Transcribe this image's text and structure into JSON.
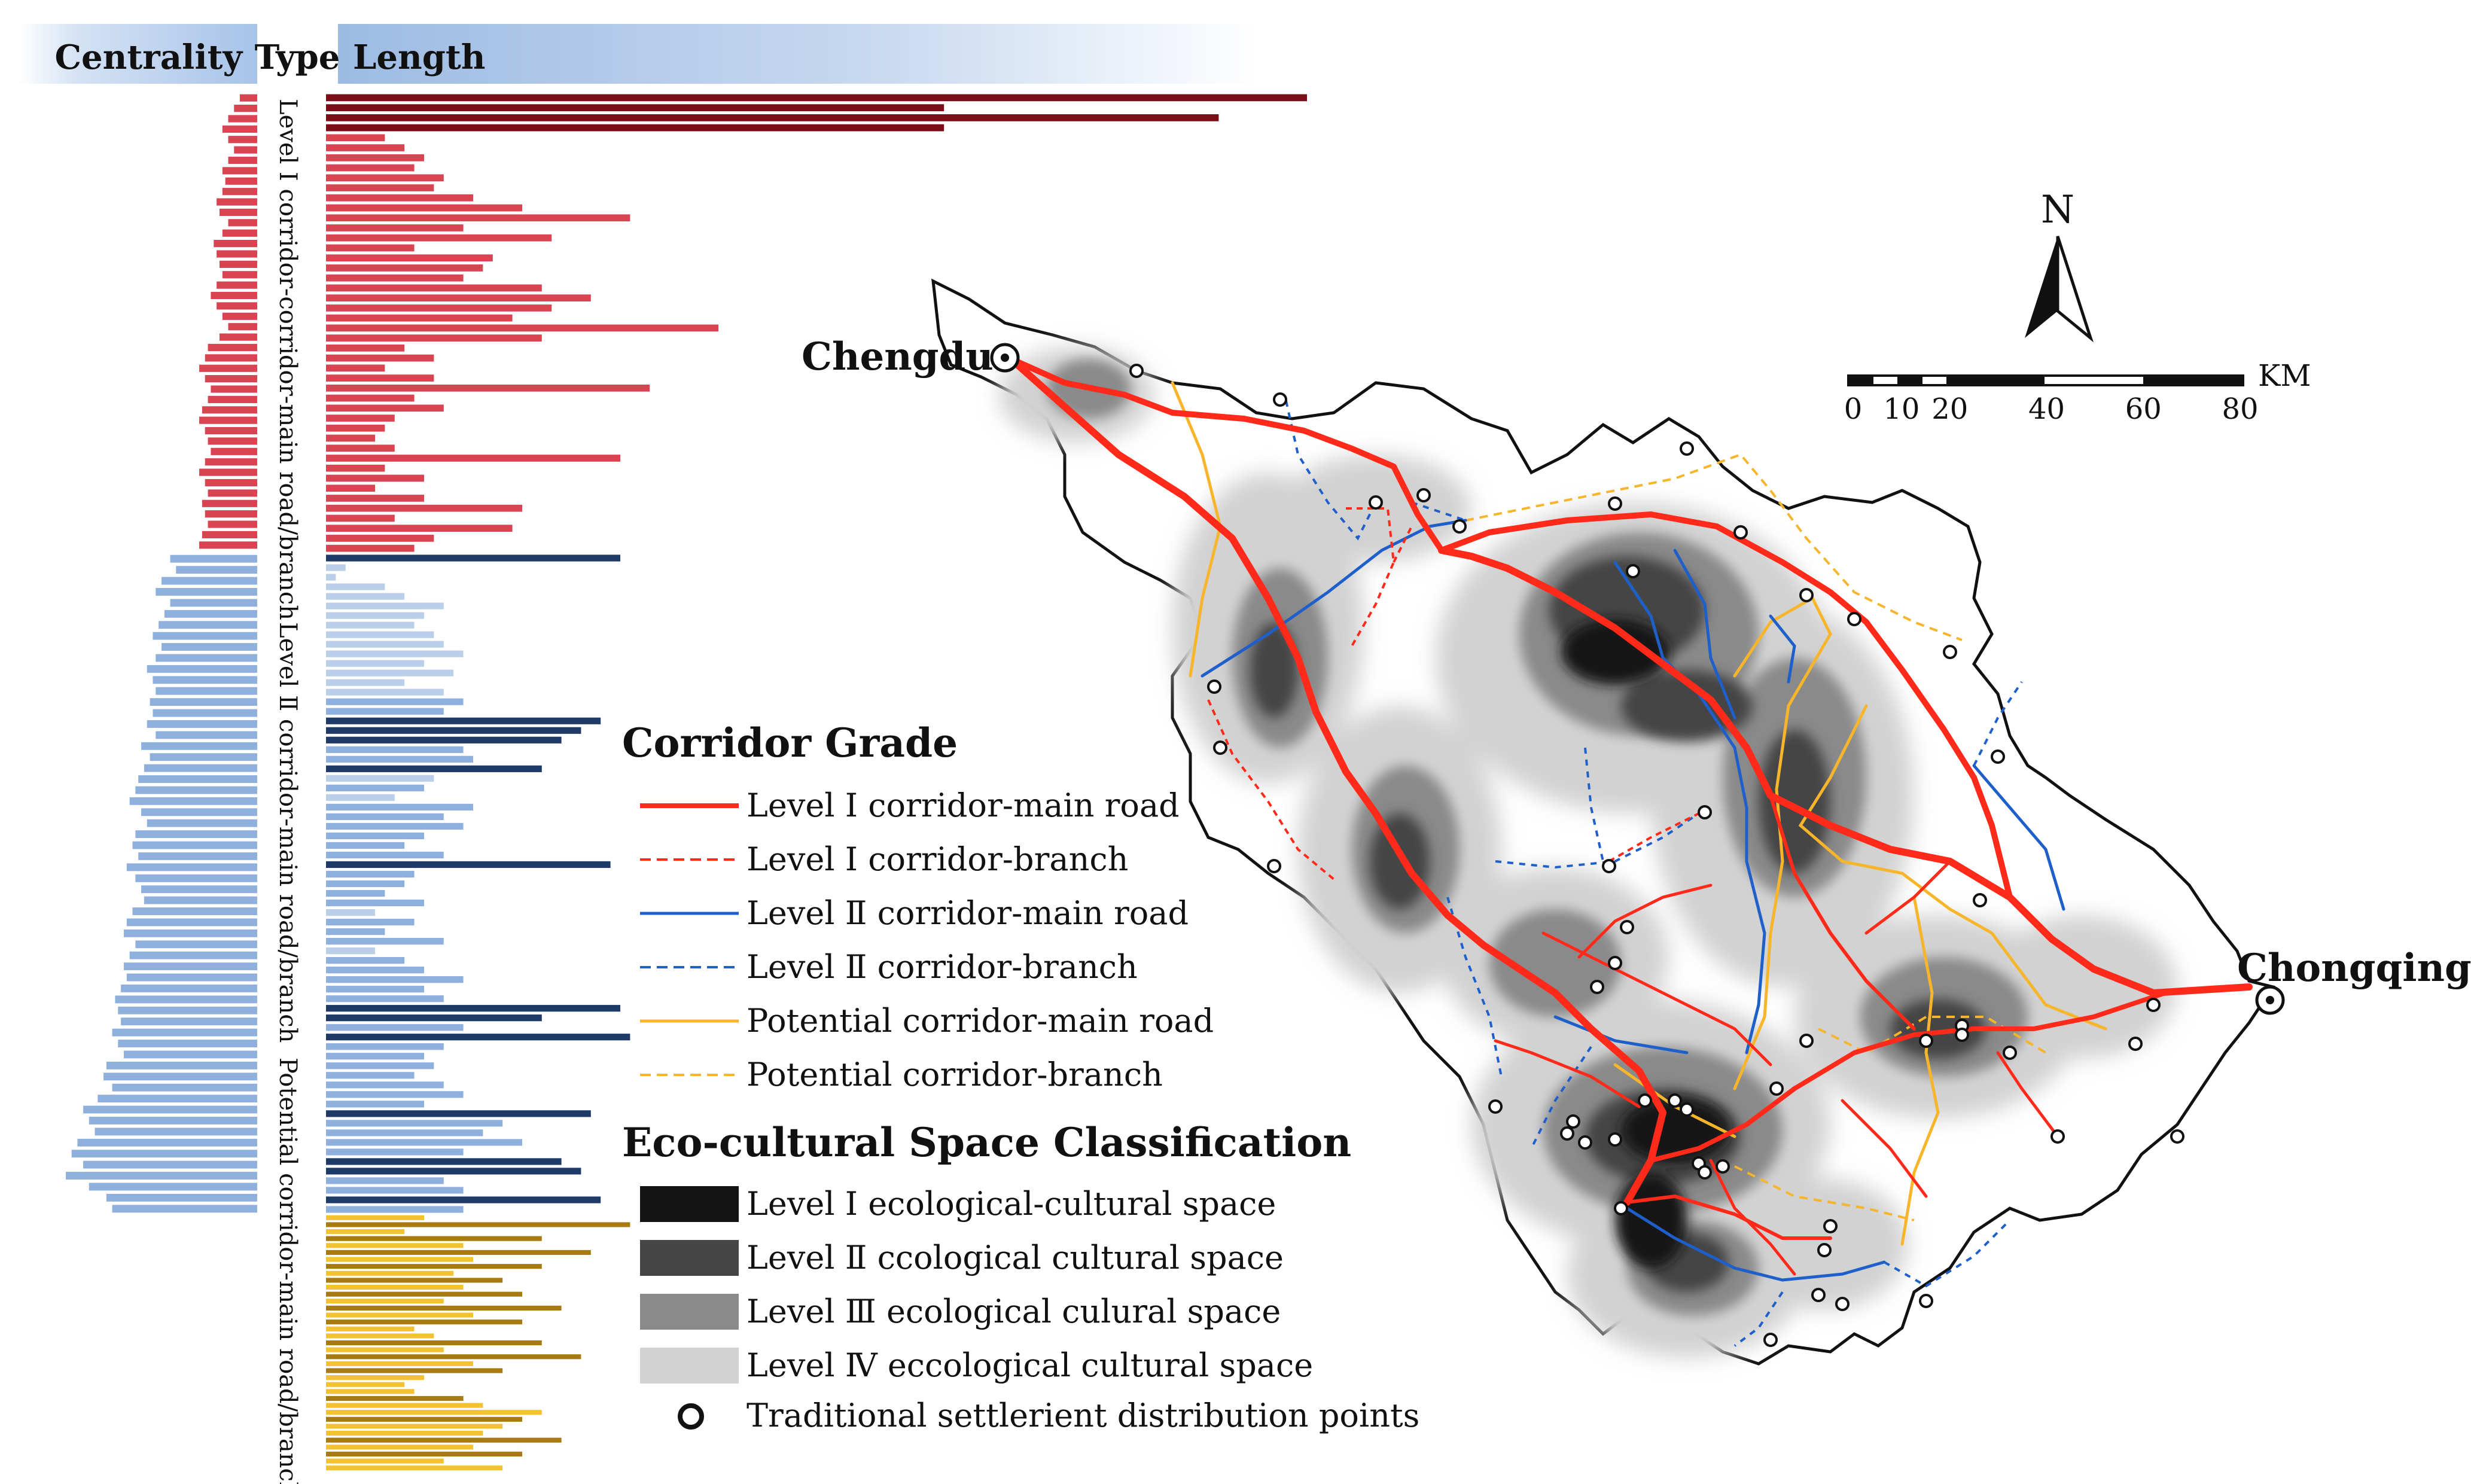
{
  "header": {
    "centrality_label": "Centrality",
    "type_label": "Type",
    "length_label": "Length"
  },
  "type_labels": {
    "level1": "Level Ⅰ corridor-corridor-main road/branch",
    "level2": "Level Ⅱ corridor-main road/branch",
    "potential": "Potential corridor-main road/branch"
  },
  "colors": {
    "level1_main": "#7a0e16",
    "level1_branch": "#d94452",
    "level2_main": "#1f3a66",
    "level2_branch": "#8fb0dc",
    "level2_light": "#bccfe9",
    "potential_main": "#a77b12",
    "potential_branch": "#f2c230",
    "corridor_red": "#ff2a1a",
    "corridor_blue": "#1f5fc9",
    "corridor_yellow": "#f7b52b",
    "space_l1": "#141414",
    "space_l2": "#454545",
    "space_l3": "#8a8a8a",
    "space_l4": "#d2d2d2"
  },
  "centrality_bars": {
    "level1": [
      0.06,
      0.08,
      0.1,
      0.12,
      0.1,
      0.08,
      0.1,
      0.12,
      0.11,
      0.12,
      0.14,
      0.13,
      0.1,
      0.12,
      0.15,
      0.14,
      0.13,
      0.12,
      0.14,
      0.16,
      0.14,
      0.12,
      0.1,
      0.13,
      0.17,
      0.18,
      0.2,
      0.18,
      0.16,
      0.17,
      0.19,
      0.2,
      0.18,
      0.17,
      0.16,
      0.18,
      0.2,
      0.18,
      0.17,
      0.19,
      0.18,
      0.17,
      0.19,
      0.2
    ],
    "level2": [
      0.3,
      0.28,
      0.33,
      0.35,
      0.3,
      0.32,
      0.34,
      0.36,
      0.33,
      0.35,
      0.38,
      0.36,
      0.35,
      0.37,
      0.36,
      0.38,
      0.35,
      0.4,
      0.37,
      0.39,
      0.41,
      0.42,
      0.44,
      0.4,
      0.38,
      0.42,
      0.43,
      0.41,
      0.45,
      0.42,
      0.4,
      0.39,
      0.43,
      0.45,
      0.46,
      0.42,
      0.44,
      0.46,
      0.45,
      0.47,
      0.49,
      0.48,
      0.47,
      0.5,
      0.48,
      0.46,
      0.52,
      0.53,
      0.5,
      0.55,
      0.6,
      0.58,
      0.56,
      0.62,
      0.64,
      0.6,
      0.66,
      0.58,
      0.52,
      0.5
    ]
  },
  "length_bars": {
    "level1": [
      [
        1,
        1.0
      ],
      [
        1,
        0.63
      ],
      [
        1,
        0.91
      ],
      [
        1,
        0.63
      ],
      [
        0,
        0.06
      ],
      [
        0,
        0.08
      ],
      [
        0,
        0.1
      ],
      [
        0,
        0.09
      ],
      [
        0,
        0.12
      ],
      [
        0,
        0.11
      ],
      [
        0,
        0.15
      ],
      [
        0,
        0.2
      ],
      [
        0,
        0.31
      ],
      [
        0,
        0.14
      ],
      [
        0,
        0.23
      ],
      [
        0,
        0.09
      ],
      [
        0,
        0.17
      ],
      [
        0,
        0.16
      ],
      [
        0,
        0.14
      ],
      [
        0,
        0.22
      ],
      [
        0,
        0.27
      ],
      [
        0,
        0.23
      ],
      [
        0,
        0.19
      ],
      [
        0,
        0.4
      ],
      [
        0,
        0.22
      ],
      [
        0,
        0.08
      ],
      [
        0,
        0.11
      ],
      [
        0,
        0.06
      ],
      [
        0,
        0.11
      ],
      [
        0,
        0.33
      ],
      [
        0,
        0.09
      ],
      [
        0,
        0.12
      ],
      [
        0,
        0.07
      ],
      [
        0,
        0.06
      ],
      [
        0,
        0.05
      ],
      [
        0,
        0.07
      ],
      [
        0,
        0.3
      ],
      [
        0,
        0.06
      ],
      [
        0,
        0.1
      ],
      [
        0,
        0.05
      ],
      [
        0,
        0.1
      ],
      [
        0,
        0.2
      ],
      [
        0,
        0.07
      ],
      [
        0,
        0.19
      ],
      [
        0,
        0.11
      ],
      [
        0,
        0.09
      ]
    ],
    "level2": [
      [
        1,
        0.3
      ],
      [
        2,
        0.02
      ],
      [
        2,
        0.01
      ],
      [
        2,
        0.06
      ],
      [
        2,
        0.08
      ],
      [
        2,
        0.12
      ],
      [
        2,
        0.1
      ],
      [
        2,
        0.09
      ],
      [
        2,
        0.11
      ],
      [
        2,
        0.12
      ],
      [
        2,
        0.14
      ],
      [
        2,
        0.1
      ],
      [
        2,
        0.13
      ],
      [
        2,
        0.08
      ],
      [
        2,
        0.12
      ],
      [
        0,
        0.14
      ],
      [
        0,
        0.12
      ],
      [
        1,
        0.28
      ],
      [
        1,
        0.26
      ],
      [
        1,
        0.24
      ],
      [
        0,
        0.14
      ],
      [
        0,
        0.15
      ],
      [
        1,
        0.22
      ],
      [
        2,
        0.11
      ],
      [
        0,
        0.1
      ],
      [
        2,
        0.07
      ],
      [
        0,
        0.15
      ],
      [
        0,
        0.12
      ],
      [
        0,
        0.14
      ],
      [
        0,
        0.1
      ],
      [
        0,
        0.08
      ],
      [
        0,
        0.12
      ],
      [
        1,
        0.29
      ],
      [
        0,
        0.09
      ],
      [
        0,
        0.08
      ],
      [
        0,
        0.06
      ],
      [
        0,
        0.1
      ],
      [
        2,
        0.05
      ],
      [
        0,
        0.09
      ],
      [
        0,
        0.06
      ],
      [
        0,
        0.12
      ],
      [
        2,
        0.05
      ],
      [
        0,
        0.08
      ],
      [
        0,
        0.1
      ],
      [
        0,
        0.14
      ],
      [
        0,
        0.1
      ],
      [
        0,
        0.12
      ],
      [
        1,
        0.3
      ],
      [
        1,
        0.22
      ],
      [
        0,
        0.14
      ],
      [
        1,
        0.31
      ],
      [
        0,
        0.12
      ],
      [
        0,
        0.1
      ],
      [
        0,
        0.11
      ],
      [
        0,
        0.09
      ],
      [
        0,
        0.12
      ],
      [
        0,
        0.14
      ],
      [
        0,
        0.1
      ],
      [
        1,
        0.27
      ],
      [
        0,
        0.18
      ],
      [
        0,
        0.16
      ],
      [
        0,
        0.2
      ],
      [
        0,
        0.14
      ],
      [
        1,
        0.24
      ],
      [
        1,
        0.26
      ],
      [
        0,
        0.12
      ],
      [
        0,
        0.14
      ],
      [
        1,
        0.28
      ],
      [
        0,
        0.14
      ]
    ],
    "potential": [
      [
        0,
        0.1
      ],
      [
        1,
        0.31
      ],
      [
        0,
        0.08
      ],
      [
        1,
        0.22
      ],
      [
        0,
        0.14
      ],
      [
        1,
        0.27
      ],
      [
        0,
        0.15
      ],
      [
        1,
        0.22
      ],
      [
        0,
        0.13
      ],
      [
        1,
        0.18
      ],
      [
        0,
        0.14
      ],
      [
        1,
        0.2
      ],
      [
        0,
        0.12
      ],
      [
        1,
        0.24
      ],
      [
        0,
        0.15
      ],
      [
        1,
        0.2
      ],
      [
        0,
        0.09
      ],
      [
        0,
        0.11
      ],
      [
        1,
        0.22
      ],
      [
        0,
        0.12
      ],
      [
        1,
        0.26
      ],
      [
        0,
        0.15
      ],
      [
        1,
        0.18
      ],
      [
        0,
        0.1
      ],
      [
        0,
        0.08
      ],
      [
        0,
        0.09
      ],
      [
        1,
        0.14
      ],
      [
        0,
        0.16
      ],
      [
        0,
        0.22
      ],
      [
        1,
        0.2
      ],
      [
        0,
        0.18
      ],
      [
        0,
        0.16
      ],
      [
        1,
        0.24
      ],
      [
        0,
        0.15
      ],
      [
        1,
        0.2
      ],
      [
        0,
        0.12
      ],
      [
        0,
        0.18
      ]
    ]
  },
  "map": {
    "cities": {
      "chengdu": "Chengdu",
      "chongqing": "Chongqing"
    },
    "north_label": "N",
    "scale": {
      "unit": "KM",
      "ticks": [
        "0",
        "10",
        "20",
        "40",
        "60",
        "80"
      ]
    }
  },
  "legend": {
    "corridor_title": "Corridor Grade",
    "corridor_items": [
      {
        "label": "Level  Ⅰ  corridor-main road",
        "color": "#ff2a1a",
        "dash": false,
        "width": 8
      },
      {
        "label": "Level  Ⅰ  corridor-branch",
        "color": "#ff2a1a",
        "dash": true,
        "width": 4
      },
      {
        "label": "Level  Ⅱ  corridor-main road",
        "color": "#1f5fc9",
        "dash": false,
        "width": 5
      },
      {
        "label": "Level  Ⅱ  corridor-branch",
        "color": "#1f5fc9",
        "dash": true,
        "width": 4
      },
      {
        "label": "Potential corridor-main road",
        "color": "#f7b52b",
        "dash": false,
        "width": 5
      },
      {
        "label": "Potential corridor-branch",
        "color": "#f7b52b",
        "dash": true,
        "width": 4
      }
    ],
    "space_title": "Eco-cultural Space Classification",
    "space_items": [
      {
        "label": "Level  Ⅰ  ecological-cultural space",
        "color": "#141414"
      },
      {
        "label": "Level  Ⅱ  ccological cultural space",
        "color": "#454545"
      },
      {
        "label": "Level Ⅲ ecological culural space",
        "color": "#8a8a8a"
      },
      {
        "label": "Level Ⅳ eccological cultural space",
        "color": "#d2d2d2"
      }
    ],
    "settlement_label": "Traditional settlerient distribution points"
  }
}
